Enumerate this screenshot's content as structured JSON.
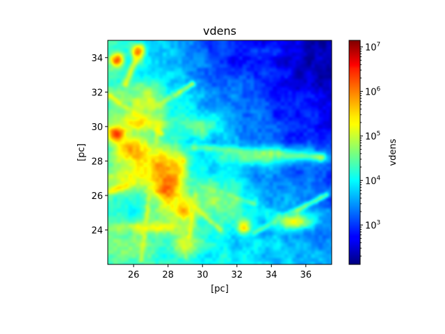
{
  "chart_data": {
    "type": "heatmap",
    "title": "vdens",
    "xlabel": "[pc]",
    "ylabel": "[pc]",
    "xlim": [
      24.5,
      37.5
    ],
    "ylim": [
      22.0,
      35.0
    ],
    "xticks": [
      26,
      28,
      30,
      32,
      34,
      36
    ],
    "yticks": [
      24,
      26,
      28,
      30,
      32,
      34
    ],
    "colormap": "jet",
    "colorbar": {
      "label": "vdens",
      "scale": "log",
      "range": [
        130,
        14000000
      ],
      "ticks": [
        {
          "value": 1000,
          "label_base": "10",
          "label_exp": "3"
        },
        {
          "value": 10000,
          "label_base": "10",
          "label_exp": "4"
        },
        {
          "value": 100000,
          "label_base": "10",
          "label_exp": "5"
        },
        {
          "value": 1000000,
          "label_base": "10",
          "label_exp": "6"
        },
        {
          "value": 10000000,
          "label_base": "10",
          "label_exp": "7"
        }
      ]
    },
    "grid": false,
    "field": {
      "description_levels_log10": [
        2.2,
        7.1
      ],
      "background_log10": 4.0,
      "gradient": [
        {
          "x": 24.5,
          "y": 22.0,
          "log10": 4.3
        },
        {
          "x": 24.5,
          "y": 35.0,
          "log10": 4.2
        },
        {
          "x": 37.5,
          "y": 35.0,
          "log10": 2.3
        },
        {
          "x": 37.5,
          "y": 22.0,
          "log10": 3.6
        }
      ],
      "blobs": [
        {
          "x": 28.0,
          "y": 26.6,
          "sx": 0.6,
          "sy": 1.2,
          "log10": 6.6
        },
        {
          "x": 27.6,
          "y": 27.6,
          "sx": 0.9,
          "sy": 0.8,
          "log10": 6.0
        },
        {
          "x": 28.9,
          "y": 25.2,
          "sx": 0.4,
          "sy": 0.5,
          "log10": 6.4
        },
        {
          "x": 25.0,
          "y": 29.6,
          "sx": 0.35,
          "sy": 0.35,
          "log10": 6.7
        },
        {
          "x": 26.0,
          "y": 28.6,
          "sx": 0.8,
          "sy": 0.6,
          "log10": 5.9
        },
        {
          "x": 26.5,
          "y": 30.3,
          "sx": 1.0,
          "sy": 0.4,
          "log10": 5.6
        },
        {
          "x": 26.0,
          "y": 27.2,
          "sx": 1.2,
          "sy": 0.5,
          "log10": 5.4
        },
        {
          "x": 25.0,
          "y": 33.9,
          "sx": 0.3,
          "sy": 0.3,
          "log10": 6.2
        },
        {
          "x": 26.2,
          "y": 34.4,
          "sx": 0.3,
          "sy": 0.3,
          "log10": 6.0
        },
        {
          "x": 27.0,
          "y": 24.1,
          "sx": 1.6,
          "sy": 0.25,
          "log10": 5.3
        },
        {
          "x": 32.4,
          "y": 24.1,
          "sx": 0.3,
          "sy": 0.3,
          "log10": 5.6
        },
        {
          "x": 35.2,
          "y": 24.5,
          "sx": 0.8,
          "sy": 0.35,
          "log10": 5.3
        },
        {
          "x": 26.6,
          "y": 31.5,
          "sx": 1.2,
          "sy": 0.8,
          "log10": 5.0
        },
        {
          "x": 29.5,
          "y": 30.0,
          "sx": 1.0,
          "sy": 0.5,
          "log10": 4.7
        },
        {
          "x": 33.8,
          "y": 28.3,
          "sx": 2.5,
          "sy": 0.4,
          "log10": 4.6
        },
        {
          "x": 30.5,
          "y": 25.5,
          "sx": 1.6,
          "sy": 1.0,
          "log10": 4.8
        },
        {
          "x": 25.5,
          "y": 23.0,
          "sx": 1.2,
          "sy": 0.6,
          "log10": 4.8
        },
        {
          "x": 29.0,
          "y": 23.0,
          "sx": 0.6,
          "sy": 0.6,
          "log10": 5.0
        },
        {
          "x": 36.6,
          "y": 33.0,
          "sx": 1.3,
          "sy": 2.0,
          "log10": 2.4
        },
        {
          "x": 32.8,
          "y": 34.3,
          "sx": 1.8,
          "sy": 0.8,
          "log10": 2.8
        },
        {
          "x": 35.6,
          "y": 31.0,
          "sx": 1.2,
          "sy": 1.0,
          "log10": 2.9
        }
      ],
      "filaments": [
        {
          "x1": 24.6,
          "y1": 26.2,
          "x2": 28.8,
          "y2": 28.0,
          "w": 0.18,
          "log10": 5.3
        },
        {
          "x1": 27.0,
          "y1": 31.0,
          "x2": 29.4,
          "y2": 32.5,
          "w": 0.12,
          "log10": 4.9
        },
        {
          "x1": 25.5,
          "y1": 32.5,
          "x2": 26.4,
          "y2": 34.6,
          "w": 0.15,
          "log10": 5.2
        },
        {
          "x1": 28.6,
          "y1": 26.2,
          "x2": 31.0,
          "y2": 24.0,
          "w": 0.12,
          "log10": 5.0
        },
        {
          "x1": 30.0,
          "y1": 26.5,
          "x2": 33.0,
          "y2": 25.5,
          "w": 0.12,
          "log10": 4.6
        },
        {
          "x1": 33.0,
          "y1": 23.8,
          "x2": 37.2,
          "y2": 26.0,
          "w": 0.12,
          "log10": 4.6
        },
        {
          "x1": 29.5,
          "y1": 28.8,
          "x2": 37.0,
          "y2": 28.2,
          "w": 0.15,
          "log10": 4.7
        },
        {
          "x1": 26.4,
          "y1": 22.2,
          "x2": 27.4,
          "y2": 30.0,
          "w": 0.12,
          "log10": 5.0
        },
        {
          "x1": 24.6,
          "y1": 31.8,
          "x2": 27.6,
          "y2": 29.6,
          "w": 0.12,
          "log10": 5.1
        },
        {
          "x1": 29.0,
          "y1": 22.4,
          "x2": 29.6,
          "y2": 26.0,
          "w": 0.1,
          "log10": 5.0
        }
      ]
    }
  }
}
